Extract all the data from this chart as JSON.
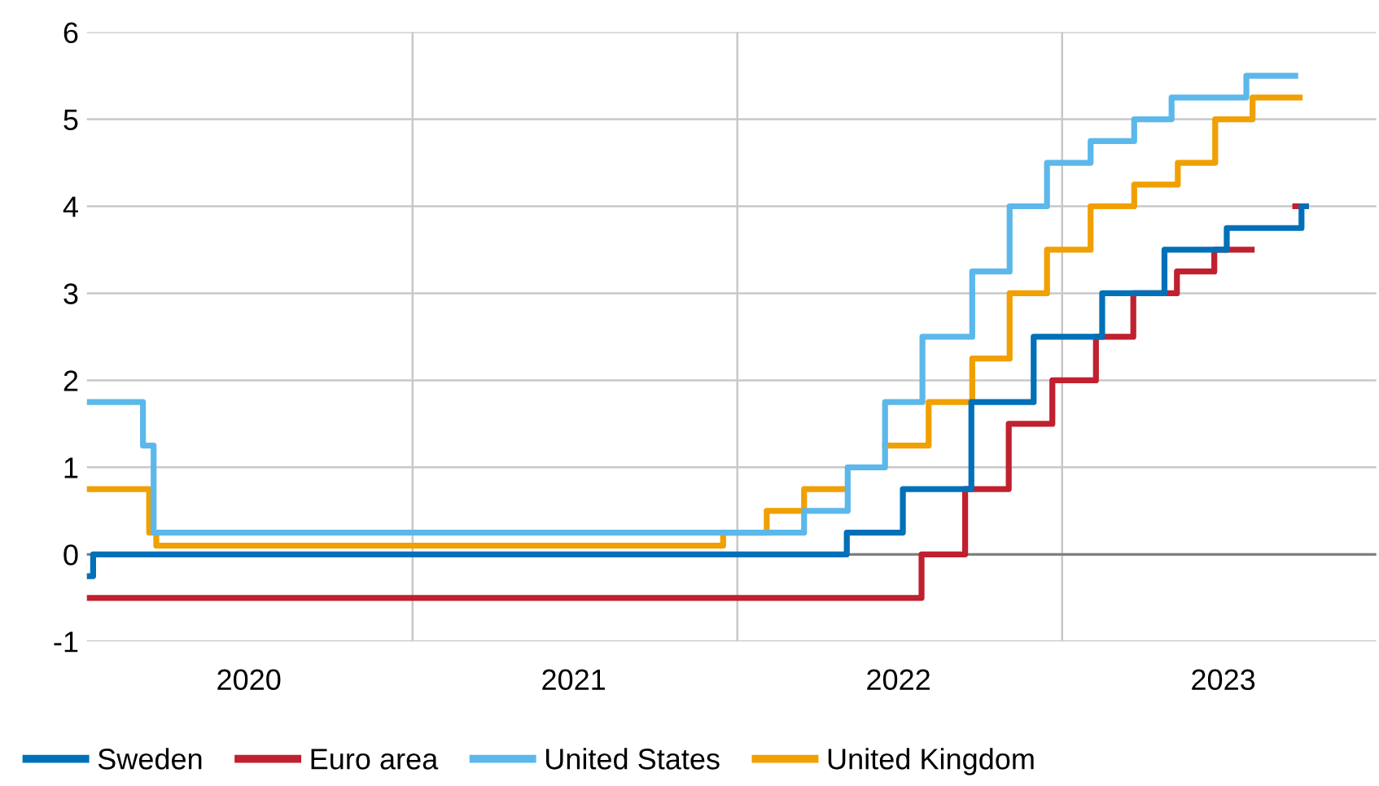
{
  "chart_data": {
    "type": "step",
    "ylim": [
      -1,
      6
    ],
    "yticks": [
      -1,
      0,
      1,
      2,
      3,
      4,
      5,
      6
    ],
    "xlim": [
      "2020-01-01",
      "2023-12-20"
    ],
    "xticks": [
      {
        "value": "2020-07-01",
        "label": "2020"
      },
      {
        "value": "2021-01-01",
        "label": null
      },
      {
        "value": "2021-07-01",
        "label": "2021"
      },
      {
        "value": "2022-01-01",
        "label": null
      },
      {
        "value": "2022-07-01",
        "label": "2022"
      },
      {
        "value": "2023-01-01",
        "label": null
      },
      {
        "value": "2023-07-01",
        "label": "2023"
      }
    ],
    "grid": true,
    "legend": "bottom",
    "line_style": "solid",
    "marker": "none",
    "ref_lines": [
      {
        "axis": "y",
        "value": 0,
        "color": "#808080"
      }
    ],
    "series": [
      {
        "name": "Sweden",
        "color": "#0070b8",
        "x": [
          "2020-01-01",
          "2020-01-08",
          "2022-05-04",
          "2022-07-06",
          "2022-09-21",
          "2022-11-30",
          "2023-02-15",
          "2023-04-26",
          "2023-07-05",
          "2023-09-27",
          "2023-10-02"
        ],
        "values": [
          -0.25,
          0,
          0.25,
          0.75,
          1.75,
          2.5,
          3,
          3.5,
          3.75,
          4,
          4
        ]
      },
      {
        "name": "Euro area",
        "color": "#c0202f",
        "x": [
          "2020-01-01",
          "2022-07-27",
          "2022-09-14",
          "2022-11-02",
          "2022-12-21",
          "2023-02-08",
          "2023-03-22",
          "2023-05-10",
          "2023-06-21",
          "2023-08-02",
          "2023-09-20",
          "2023-10-02"
        ],
        "values": [
          -0.5,
          0,
          0.75,
          1.5,
          2,
          2.5,
          3,
          3.25,
          3.5,
          null,
          4,
          4
        ]
      },
      {
        "name": "United States",
        "color": "#5cb8ea",
        "x": [
          "2020-01-01",
          "2020-03-04",
          "2020-03-16",
          "2022-03-17",
          "2022-05-05",
          "2022-06-16",
          "2022-07-28",
          "2022-09-22",
          "2022-11-03",
          "2022-12-15",
          "2023-02-02",
          "2023-03-23",
          "2023-05-04",
          "2023-07-27",
          "2023-09-20"
        ],
        "values": [
          1.75,
          1.25,
          0.25,
          0.5,
          1,
          1.75,
          2.5,
          3.25,
          4,
          4.5,
          4.75,
          5,
          5.25,
          5.5,
          5.5
        ]
      },
      {
        "name": "United Kingdom",
        "color": "#f0a000",
        "x": [
          "2020-01-01",
          "2020-03-11",
          "2020-03-19",
          "2021-12-16",
          "2022-02-03",
          "2022-03-17",
          "2022-05-05",
          "2022-06-16",
          "2022-08-04",
          "2022-09-22",
          "2022-11-03",
          "2022-12-15",
          "2023-02-02",
          "2023-03-23",
          "2023-05-11",
          "2023-06-22",
          "2023-08-03",
          "2023-09-25"
        ],
        "values": [
          0.75,
          0.25,
          0.1,
          0.25,
          0.5,
          0.75,
          null,
          1.25,
          1.75,
          2.25,
          3,
          3.5,
          4,
          4.25,
          4.5,
          5,
          5.25,
          5.25
        ]
      }
    ]
  }
}
